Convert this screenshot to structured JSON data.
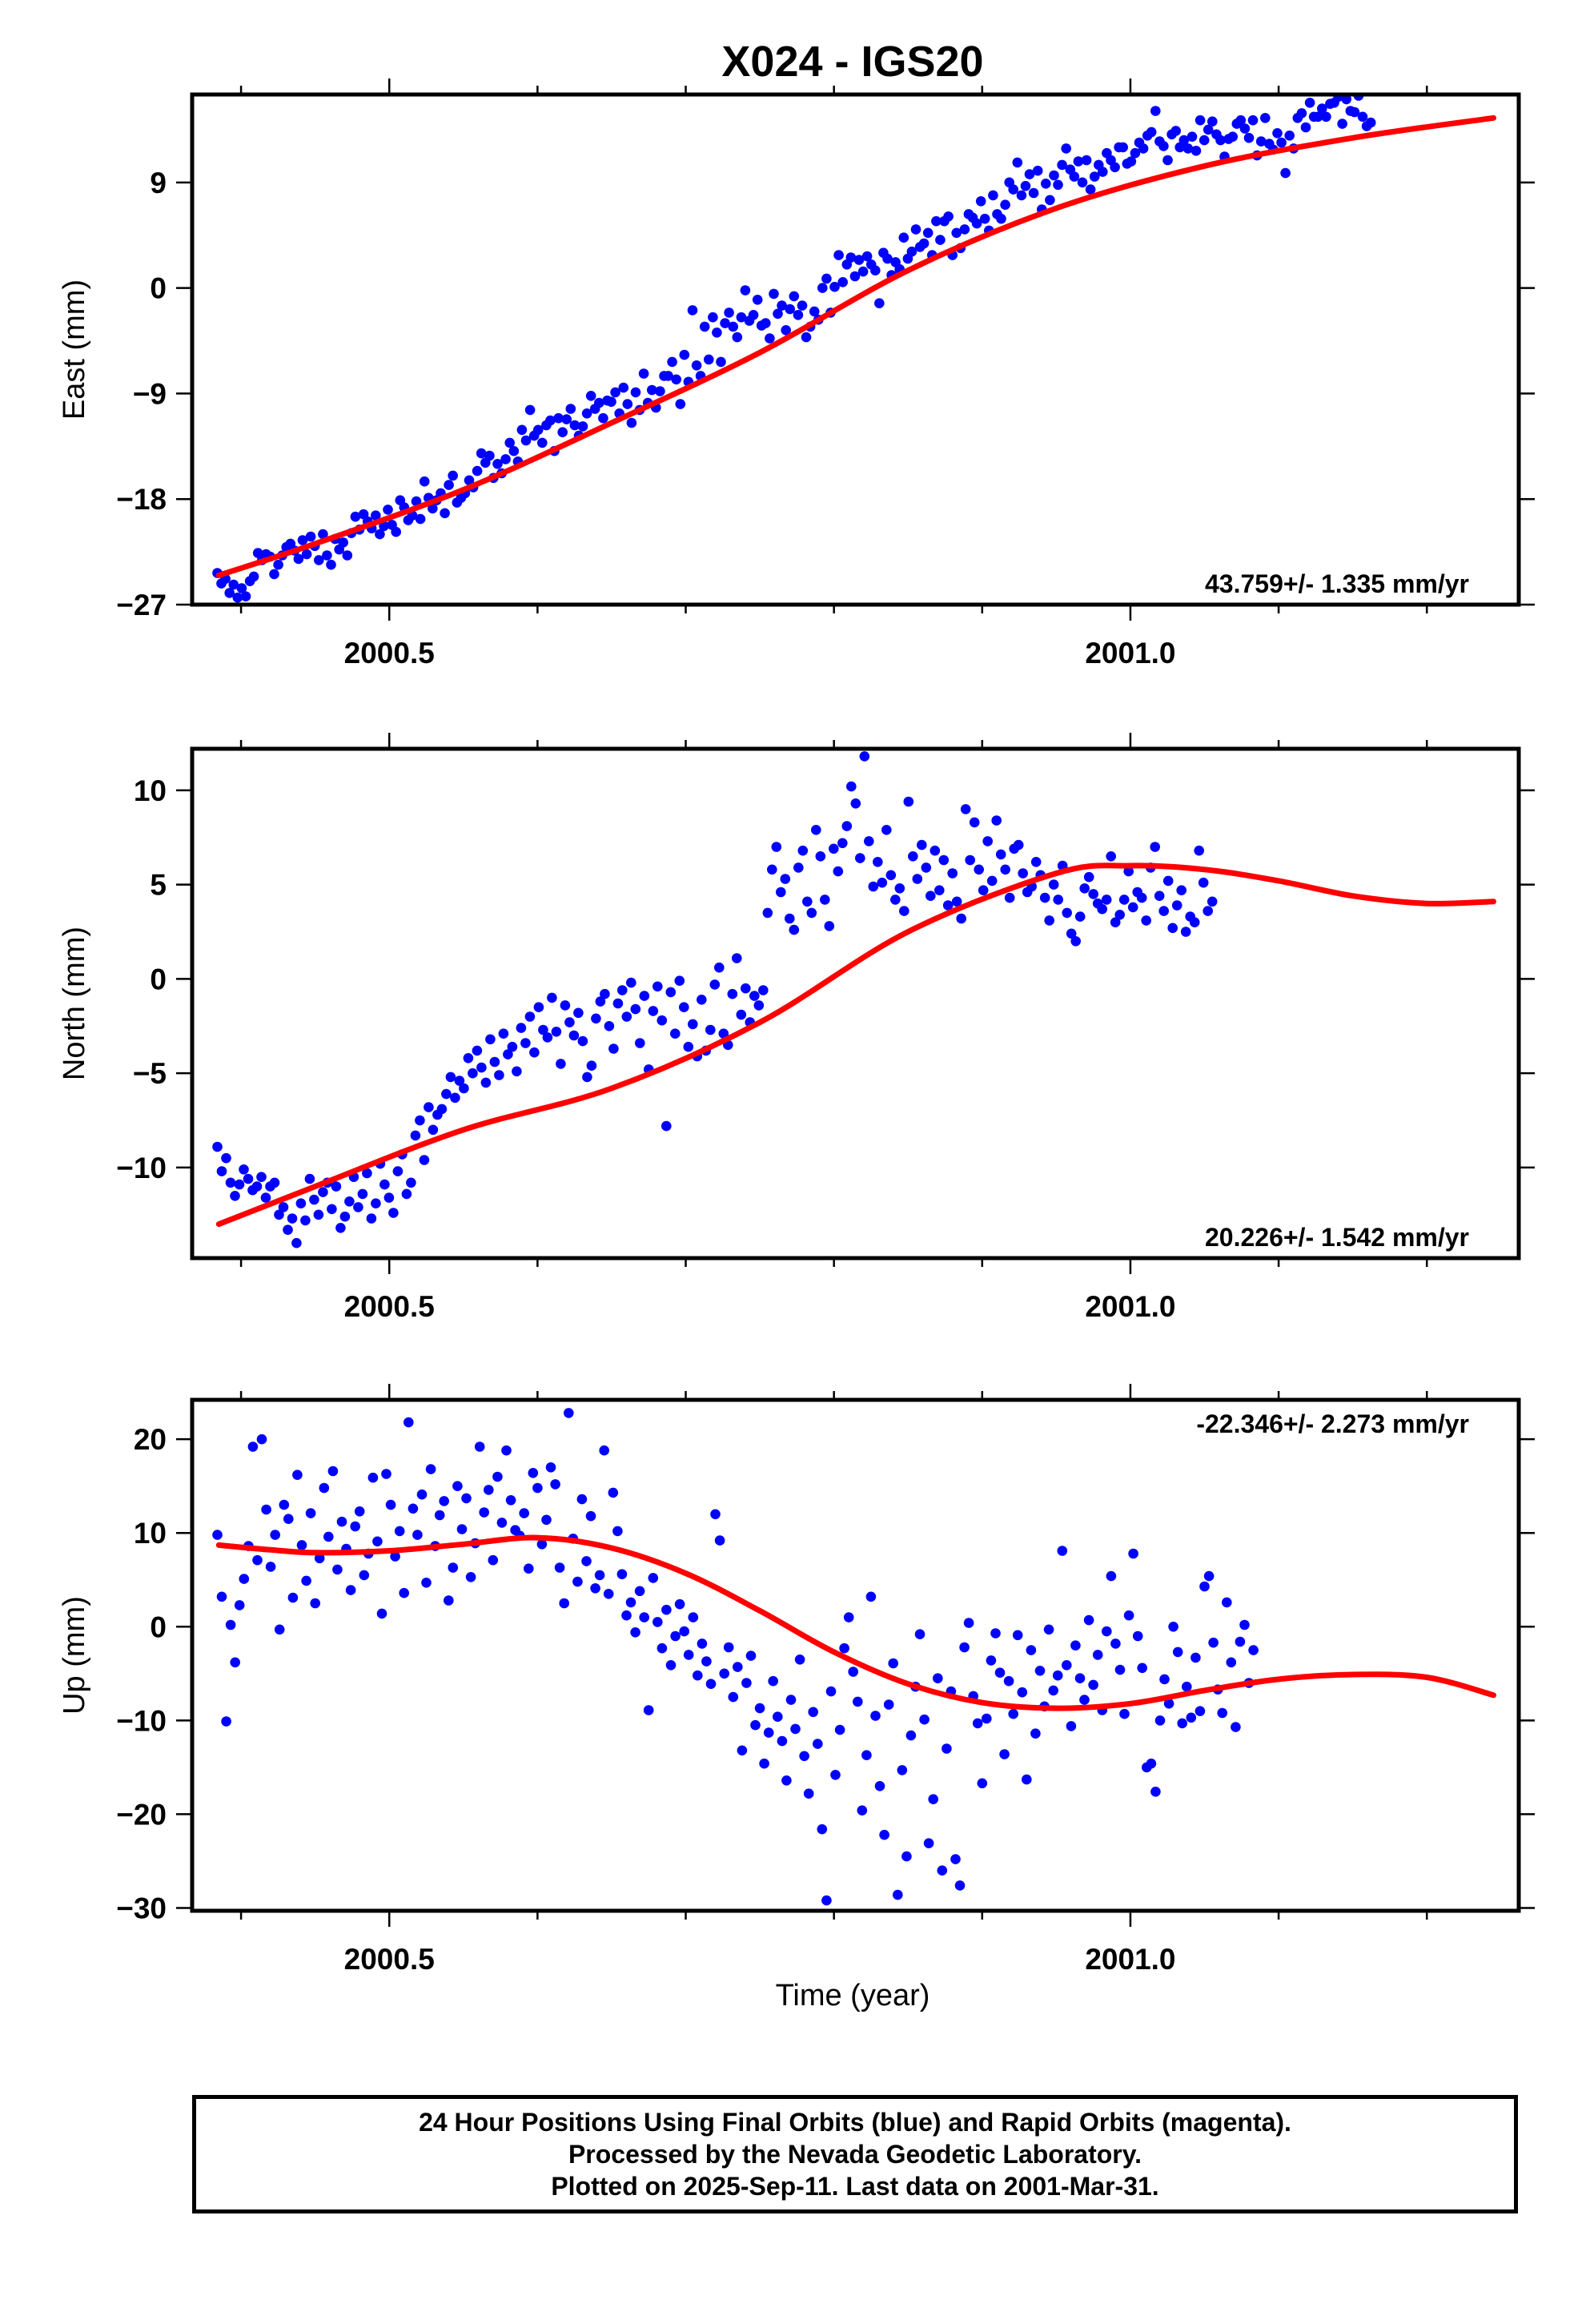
{
  "chart_data": {
    "title": "X024 - IGS20",
    "xlabel": "Time (year)",
    "x_ticks": [
      2000.5,
      2001.0
    ],
    "x_tick_labels": [
      "2000.5",
      "2001.0"
    ],
    "xlim": [
      2000.367,
      2001.262
    ],
    "series_colors": {
      "final_orbits": "#0000ff",
      "rapid_orbits": "#ff00ff",
      "model": "#ff0000"
    },
    "panels": [
      {
        "id": "east",
        "type": "scatter",
        "ylabel": "East (mm)",
        "ylim": [
          -27,
          16.5
        ],
        "y_ticks": [
          -27,
          -18,
          -9,
          0,
          9
        ],
        "y_tick_labels": [
          "−27",
          "−18",
          "−9",
          "0",
          "9"
        ],
        "rate_label": "43.759+/- 1.335 mm/yr",
        "rate_position": "bottom-right",
        "model_curve": {
          "x": [
            2000.385,
            2000.45,
            2000.55,
            2000.65,
            2000.75,
            2000.85,
            2000.95,
            2001.05,
            2001.15,
            2001.245
          ],
          "y": [
            -24.5,
            -21.8,
            -17.2,
            -11.5,
            -5.5,
            1.5,
            6.8,
            10.4,
            12.8,
            14.5
          ]
        },
        "points": {
          "start": 2000.384,
          "step": 0.00274,
          "y": [
            -24.3,
            -25.2,
            -24.8,
            -26.0,
            -25.3,
            -26.4,
            -25.6,
            -26.3,
            -25.0,
            -24.6,
            -22.6,
            -23.2,
            -22.7,
            -22.9,
            -24.4,
            -23.6,
            -22.8,
            -22.1,
            -21.8,
            -22.4,
            -23.1,
            -21.5,
            -22.7,
            -21.2,
            -22.0,
            -23.2,
            -21.0,
            -22.8,
            -23.6,
            -21.4,
            -22.3,
            -21.7,
            -22.8,
            -20.9,
            -19.5,
            -20.6,
            -19.3,
            -19.9,
            -20.5,
            -19.4,
            -21.0,
            -20.3,
            -18.9,
            -20.2,
            -20.8,
            -18.1,
            -18.7,
            -19.8,
            -19.4,
            -18.2,
            -19.7,
            -16.5,
            -17.9,
            -18.8,
            -18.1,
            -17.5,
            -19.2,
            -16.8,
            -16.0,
            -18.3,
            -17.9,
            -17.5,
            -16.4,
            -17.0,
            -15.6,
            -14.1,
            -14.9,
            -14.3,
            -16.2,
            -15.0,
            -15.8,
            -14.6,
            -13.2,
            -13.9,
            -14.8,
            -12.1,
            -13.0,
            -10.4,
            -12.6,
            -12.1,
            -13.2,
            -11.7,
            -11.3,
            -13.9,
            -11.1,
            -12.3,
            -11.2,
            -10.3,
            -11.7,
            -12.6,
            -11.8,
            -10.7,
            -9.2,
            -10.3,
            -9.8,
            -11.1,
            -9.6,
            -9.7,
            -8.9,
            -10.7,
            -8.5,
            -9.9,
            -11.5,
            -8.9,
            -10.4,
            -7.3,
            -9.8,
            -8.7,
            -10.2,
            -8.8,
            -7.5,
            -7.5,
            -6.3,
            -7.8,
            -9.9,
            -5.7,
            -8.0,
            -1.9,
            -6.6,
            -7.5,
            -3.3,
            -6.1,
            -2.5,
            -3.8,
            -6.3,
            -3.0,
            -2.1,
            -3.3,
            -4.2,
            -2.5,
            -0.2,
            -2.8,
            -2.3,
            -1.0,
            -3.2,
            -3.0,
            -4.3,
            -0.5,
            -2.2,
            -1.5,
            -3.6,
            -1.8,
            -0.7,
            -2.3,
            -1.5,
            -4.2,
            -3.3,
            -2.0,
            -2.7,
            0.0,
            0.8,
            -2.1,
            0.1,
            2.8,
            0.5,
            2.0,
            2.6,
            1.0,
            2.4,
            1.4,
            2.7,
            2.0,
            1.5,
            -1.3,
            3.0,
            2.5,
            1.1,
            2.2,
            1.6,
            4.3,
            2.5,
            3.1,
            5.0,
            3.5,
            3.8,
            4.7,
            2.8,
            5.7,
            4.1,
            5.7,
            6.1,
            2.8,
            4.7,
            3.4,
            5.0,
            6.3,
            6.0,
            5.5,
            7.4,
            5.9,
            4.9,
            7.9,
            6.3,
            5.9,
            7.1,
            9.0,
            8.4,
            10.7,
            7.9,
            8.7,
            9.7,
            8.1,
            10.0,
            6.7,
            8.9,
            7.5,
            9.6,
            8.8,
            10.5,
            11.9,
            10.1,
            9.5,
            10.8,
            9.0,
            10.9,
            8.4,
            9.5,
            10.5,
            9.9,
            11.5,
            10.9,
            10.3,
            12.0,
            12.0,
            10.6,
            10.8,
            11.5,
            12.4,
            11.9,
            13.0,
            13.3,
            15.1,
            12.5,
            12.1,
            10.9,
            13.1,
            13.4,
            12.0,
            12.6,
            11.9,
            12.9,
            11.7,
            14.3,
            12.6,
            13.5,
            14.2,
            13.1,
            12.6,
            11.2,
            12.7,
            12.9,
            14.0,
            14.3,
            13.6,
            12.8,
            14.3,
            11.3,
            12.5,
            14.5,
            12.3,
            11.8,
            13.2,
            12.4,
            9.8,
            13.0,
            11.9,
            14.5,
            14.9,
            13.7,
            15.8,
            14.6,
            14.6,
            15.3,
            14.6,
            15.7,
            15.8,
            16.3,
            14.0,
            16.1,
            15.1,
            15.0,
            16.4,
            14.6,
            13.8,
            14.1
          ]
        }
      },
      {
        "id": "north",
        "type": "scatter",
        "ylabel": "North (mm)",
        "ylim": [
          -14.8,
          12.2
        ],
        "y_ticks": [
          -10,
          -5,
          0,
          5,
          10
        ],
        "y_tick_labels": [
          "−10",
          "−5",
          "0",
          "5",
          "10"
        ],
        "rate_label": "20.226+/- 1.542 mm/yr",
        "rate_position": "bottom-right",
        "model_curve": {
          "x": [
            2000.385,
            2000.45,
            2000.55,
            2000.65,
            2000.75,
            2000.85,
            2000.95,
            2001.0,
            2001.05,
            2001.1,
            2001.15,
            2001.2,
            2001.245
          ],
          "y": [
            -13.0,
            -11.0,
            -8.0,
            -5.8,
            -2.3,
            2.5,
            5.6,
            6.0,
            5.8,
            5.2,
            4.4,
            4.0,
            4.1
          ]
        },
        "points": {
          "start": 2000.384,
          "step": 0.00297,
          "y": [
            -8.9,
            -10.2,
            -9.5,
            -10.8,
            -11.5,
            -10.9,
            -10.1,
            -10.6,
            -11.2,
            -11.0,
            -10.5,
            -11.6,
            -11.0,
            -10.8,
            -12.5,
            -12.1,
            -13.3,
            -12.7,
            -14.0,
            -11.9,
            -12.8,
            -10.6,
            -11.7,
            -12.5,
            -11.3,
            -10.8,
            -12.2,
            -11.0,
            -13.2,
            -12.6,
            -11.8,
            -10.5,
            -12.1,
            -11.4,
            -10.3,
            -12.7,
            -11.9,
            -9.8,
            -10.9,
            -11.6,
            -12.4,
            -10.2,
            -9.3,
            -11.4,
            -10.8,
            -8.3,
            -7.5,
            -9.6,
            -6.8,
            -8.0,
            -7.2,
            -6.9,
            -6.1,
            -5.2,
            -6.3,
            -5.4,
            -5.8,
            -4.2,
            -5.0,
            -3.8,
            -4.7,
            -5.5,
            -3.2,
            -4.4,
            -5.1,
            -2.9,
            -4.0,
            -3.6,
            -4.9,
            -2.6,
            -3.4,
            -2.0,
            -3.9,
            -1.5,
            -2.7,
            -3.1,
            -1.0,
            -2.8,
            -4.5,
            -1.4,
            -2.3,
            -3.0,
            -1.8,
            -3.3,
            -5.2,
            -4.6,
            -2.1,
            -1.2,
            -0.8,
            -2.5,
            -3.7,
            -1.3,
            -0.6,
            -2.0,
            -0.2,
            -1.6,
            -3.4,
            -0.9,
            -4.8,
            -1.7,
            -0.4,
            -2.2,
            -7.8,
            -0.7,
            -2.9,
            -0.1,
            -1.5,
            -3.6,
            -2.4,
            -4.1,
            -1.1,
            -3.8,
            -2.7,
            -0.3,
            0.6,
            -2.9,
            -3.5,
            -0.8,
            1.1,
            -1.9,
            -0.5,
            -2.3,
            -0.9,
            -1.4,
            -0.6,
            3.5,
            5.8,
            7.0,
            4.6,
            5.3,
            3.2,
            2.6,
            5.9,
            6.8,
            4.1,
            3.5,
            7.9,
            6.5,
            4.2,
            2.8,
            6.9,
            5.7,
            7.2,
            8.1,
            10.2,
            9.3,
            6.4,
            11.8,
            7.3,
            4.9,
            6.2,
            5.1,
            7.9,
            5.5,
            4.2,
            4.8,
            3.6,
            9.4,
            6.5,
            5.3,
            7.1,
            5.9,
            4.4,
            6.8,
            4.7,
            6.3,
            3.9,
            5.6,
            4.1,
            3.2,
            9.0,
            6.3,
            8.3,
            5.8,
            4.7,
            7.3,
            5.2,
            8.4,
            6.6,
            5.8,
            4.3,
            6.9,
            7.1,
            5.6,
            4.6,
            4.9,
            6.2,
            5.5,
            4.3,
            3.1,
            5.0,
            4.2,
            6.0,
            3.5,
            2.4,
            2.0,
            3.3,
            4.8,
            5.4,
            4.5,
            4.0,
            3.7,
            4.2,
            6.5,
            3.0,
            3.4,
            4.2,
            5.7,
            3.8,
            4.6,
            4.3,
            3.1,
            5.9,
            7.0,
            4.4,
            3.6,
            5.2,
            2.7,
            3.9,
            4.7,
            2.5,
            3.3,
            3.0,
            6.8,
            5.1,
            3.6,
            4.1
          ]
        }
      },
      {
        "id": "up",
        "type": "scatter",
        "ylabel": "Up (mm)",
        "ylim": [
          -30.3,
          24.2
        ],
        "y_ticks": [
          -30,
          -20,
          -10,
          0,
          10,
          20
        ],
        "y_tick_labels": [
          "−30",
          "−20",
          "−10",
          "0",
          "10",
          "20"
        ],
        "rate_label": "-22.346+/- 2.273 mm/yr",
        "rate_position": "top-right",
        "model_curve": {
          "x": [
            2000.385,
            2000.42,
            2000.45,
            2000.5,
            2000.55,
            2000.6,
            2000.65,
            2000.7,
            2000.75,
            2000.8,
            2000.85,
            2000.9,
            2000.95,
            2001.0,
            2001.05,
            2001.1,
            2001.15,
            2001.2,
            2001.245
          ],
          "y": [
            8.7,
            8.2,
            7.9,
            8.1,
            8.8,
            9.5,
            8.4,
            5.7,
            1.7,
            -2.7,
            -6.1,
            -8.1,
            -8.7,
            -8.2,
            -6.8,
            -5.6,
            -5.1,
            -5.4,
            -7.3
          ]
        },
        "points": {
          "start": 2000.384,
          "step": 0.003,
          "y": [
            9.8,
            3.2,
            -10.1,
            0.2,
            -3.8,
            2.3,
            5.1,
            8.6,
            19.2,
            7.1,
            20.0,
            12.5,
            6.4,
            9.8,
            -0.3,
            13.0,
            11.5,
            3.1,
            16.2,
            8.7,
            4.9,
            12.1,
            2.5,
            7.3,
            14.8,
            9.6,
            16.6,
            6.1,
            11.2,
            8.3,
            3.9,
            10.7,
            12.3,
            5.5,
            7.8,
            15.9,
            9.1,
            1.4,
            16.3,
            13.0,
            7.5,
            10.2,
            3.6,
            21.8,
            12.6,
            9.8,
            14.1,
            4.7,
            16.8,
            8.6,
            11.9,
            13.4,
            2.8,
            6.3,
            15.0,
            10.4,
            13.7,
            5.3,
            8.9,
            19.2,
            12.2,
            14.6,
            7.1,
            16.0,
            11.1,
            18.8,
            13.5,
            10.3,
            9.7,
            12.1,
            6.2,
            16.4,
            14.8,
            8.8,
            11.4,
            17.0,
            15.2,
            6.3,
            2.5,
            22.8,
            9.4,
            4.8,
            13.6,
            7.0,
            11.8,
            4.1,
            5.5,
            18.8,
            3.5,
            14.3,
            10.2,
            5.6,
            1.2,
            2.6,
            -0.6,
            3.8,
            1.0,
            -8.9,
            5.2,
            0.5,
            -2.3,
            1.8,
            -4.1,
            -1.0,
            2.4,
            -0.5,
            -3.0,
            1.0,
            -5.2,
            -1.8,
            -3.7,
            -6.1,
            12.0,
            9.2,
            -5.0,
            -2.2,
            -7.5,
            -4.3,
            -13.2,
            -6.0,
            -3.1,
            -10.5,
            -8.7,
            -14.6,
            -11.3,
            -5.8,
            -9.6,
            -12.2,
            -16.4,
            -7.8,
            -10.9,
            -3.5,
            -13.8,
            -17.8,
            -9.1,
            -12.5,
            -21.6,
            -29.2,
            -6.9,
            -15.8,
            -11.0,
            -2.3,
            1.0,
            -4.8,
            -8.0,
            -19.6,
            -13.7,
            3.2,
            -9.5,
            -17.0,
            -22.2,
            -8.3,
            -3.9,
            -28.6,
            -15.3,
            -24.5,
            -11.6,
            -6.4,
            -0.8,
            -9.9,
            -23.1,
            -18.4,
            -5.5,
            -26.0,
            -13.0,
            -6.9,
            -24.8,
            -27.6,
            -2.2,
            0.4,
            -7.4,
            -10.3,
            -16.7,
            -9.8,
            -3.6,
            -0.7,
            -4.9,
            -13.6,
            -5.8,
            -9.3,
            -0.9,
            -7.0,
            -16.3,
            -2.5,
            -11.4,
            -4.7,
            -8.5,
            -0.3,
            -6.8,
            -5.2,
            8.1,
            -4.1,
            -10.6,
            -2.0,
            -5.5,
            -7.8,
            0.7,
            -6.2,
            -3.0,
            -8.9,
            -0.5,
            5.4,
            -1.8,
            -4.6,
            -9.3,
            1.2,
            7.8,
            -1.0,
            -4.4,
            -15.0,
            -14.6,
            -17.6,
            -10.0,
            -5.6,
            -8.2,
            0.0,
            -2.7,
            -10.3,
            -6.4,
            -9.7,
            -3.3,
            -9.0,
            4.3,
            5.4,
            -1.7,
            -6.7,
            -9.2,
            2.6,
            -3.8,
            -10.7,
            -1.6,
            0.2,
            -6.0,
            -2.5
          ]
        }
      }
    ]
  },
  "footer": {
    "line1": "24 Hour Positions Using Final Orbits (blue) and Rapid Orbits (magenta).",
    "line2": "Processed by the Nevada Geodetic Laboratory.",
    "line3": "Plotted on 2025-Sep-11. Last data on 2001-Mar-31."
  }
}
